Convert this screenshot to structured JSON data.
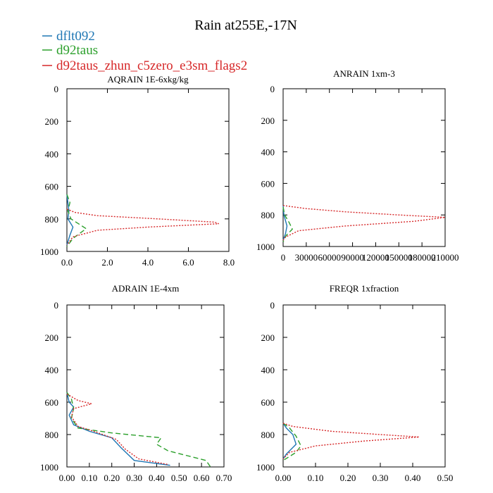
{
  "figure": {
    "title": "Rain at255E,-17N",
    "legend": [
      {
        "name": "dflt092",
        "color": "#1f77b4",
        "dash": "solid"
      },
      {
        "name": "d92taus",
        "color": "#2ca02c",
        "dash": "dashed"
      },
      {
        "name": "d92taus_zhun_c5zero_e3sm_flags2",
        "color": "#d62728",
        "dash": "dotted"
      }
    ]
  },
  "chart_data": [
    {
      "type": "line",
      "title": "AQRAIN  1E-6xkg/kg",
      "xlim": [
        0,
        8
      ],
      "xticks": [
        "0.0",
        "2.0",
        "4.0",
        "6.0",
        "8.0"
      ],
      "ylim": [
        1000,
        0
      ],
      "yticks": [
        "0",
        "200",
        "400",
        "600",
        "800",
        "1000"
      ],
      "grid": false,
      "series": [
        {
          "name": "dflt092",
          "points": [
            [
              0,
              650
            ],
            [
              0.05,
              700
            ],
            [
              0.1,
              750
            ],
            [
              0.05,
              800
            ],
            [
              0.3,
              850
            ],
            [
              0.15,
              900
            ],
            [
              0,
              960
            ]
          ]
        },
        {
          "name": "d92taus",
          "points": [
            [
              0,
              650
            ],
            [
              0.15,
              700
            ],
            [
              0.05,
              750
            ],
            [
              0.2,
              800
            ],
            [
              0.95,
              860
            ],
            [
              0.3,
              920
            ],
            [
              0,
              970
            ]
          ]
        },
        {
          "name": "d92taus_zhun_c5zero_e3sm_flags2",
          "points": [
            [
              0,
              740
            ],
            [
              0.4,
              760
            ],
            [
              1.5,
              780
            ],
            [
              4.5,
              800
            ],
            [
              7.3,
              820
            ],
            [
              7.5,
              830
            ],
            [
              4.0,
              850
            ],
            [
              1.5,
              870
            ],
            [
              0.3,
              910
            ],
            [
              0,
              960
            ]
          ]
        }
      ]
    },
    {
      "type": "line",
      "title": "ANRAIN  1xm-3",
      "xlim": [
        0,
        210000
      ],
      "xticks": [
        "0",
        "30000",
        "60000",
        "90000",
        "120000",
        "150000",
        "180000",
        "210000"
      ],
      "ylim": [
        1000,
        0
      ],
      "yticks": [
        "0",
        "200",
        "400",
        "600",
        "800",
        "1000"
      ],
      "grid": false,
      "series": [
        {
          "name": "dflt092",
          "points": [
            [
              0,
              740
            ],
            [
              1000,
              800
            ],
            [
              5000,
              870
            ],
            [
              3000,
              920
            ],
            [
              0,
              960
            ]
          ]
        },
        {
          "name": "d92taus",
          "points": [
            [
              0,
              750
            ],
            [
              2000,
              800
            ],
            [
              8000,
              850
            ],
            [
              12000,
              890
            ],
            [
              4000,
              930
            ],
            [
              0,
              970
            ]
          ]
        },
        {
          "name": "d92taus_zhun_c5zero_e3sm_flags2",
          "points": [
            [
              0,
              740
            ],
            [
              30000,
              760
            ],
            [
              80000,
              780
            ],
            [
              150000,
              800
            ],
            [
              210000,
              815
            ],
            [
              170000,
              840
            ],
            [
              80000,
              870
            ],
            [
              20000,
              900
            ],
            [
              3000,
              940
            ],
            [
              0,
              960
            ]
          ]
        }
      ]
    },
    {
      "type": "line",
      "title": "ADRAIN  1E-4xm",
      "xlim": [
        0,
        0.7
      ],
      "xticks": [
        "0.00",
        "0.10",
        "0.20",
        "0.30",
        "0.40",
        "0.50",
        "0.60",
        "0.70"
      ],
      "ylim": [
        1000,
        0
      ],
      "yticks": [
        "0",
        "200",
        "400",
        "600",
        "800",
        "1000"
      ],
      "grid": false,
      "series": [
        {
          "name": "dflt092",
          "points": [
            [
              0,
              540
            ],
            [
              0.01,
              600
            ],
            [
              0.03,
              630
            ],
            [
              0.01,
              680
            ],
            [
              0.03,
              740
            ],
            [
              0.1,
              780
            ],
            [
              0.2,
              820
            ],
            [
              0.24,
              880
            ],
            [
              0.3,
              960
            ],
            [
              0.46,
              990
            ]
          ]
        },
        {
          "name": "d92taus",
          "points": [
            [
              0,
              540
            ],
            [
              0.02,
              580
            ],
            [
              0.03,
              640
            ],
            [
              0.02,
              700
            ],
            [
              0.05,
              760
            ],
            [
              0.2,
              790
            ],
            [
              0.42,
              820
            ],
            [
              0.4,
              860
            ],
            [
              0.45,
              900
            ],
            [
              0.62,
              960
            ],
            [
              0.64,
              1000
            ]
          ]
        },
        {
          "name": "d92taus_zhun_c5zero_e3sm_flags2",
          "points": [
            [
              0,
              550
            ],
            [
              0.05,
              590
            ],
            [
              0.11,
              610
            ],
            [
              0.03,
              640
            ],
            [
              0.02,
              690
            ],
            [
              0.05,
              750
            ],
            [
              0.12,
              780
            ],
            [
              0.22,
              830
            ],
            [
              0.26,
              890
            ],
            [
              0.32,
              950
            ],
            [
              0.45,
              985
            ]
          ]
        }
      ]
    },
    {
      "type": "line",
      "title": "FREQR  1xfraction",
      "xlim": [
        0,
        0.5
      ],
      "xticks": [
        "0.00",
        "0.10",
        "0.20",
        "0.30",
        "0.40",
        "0.50"
      ],
      "ylim": [
        1000,
        0
      ],
      "yticks": [
        "0",
        "200",
        "400",
        "600",
        "800",
        "1000"
      ],
      "grid": false,
      "series": [
        {
          "name": "dflt092",
          "points": [
            [
              0,
              730
            ],
            [
              0.01,
              760
            ],
            [
              0.03,
              800
            ],
            [
              0.04,
              860
            ],
            [
              0.01,
              920
            ],
            [
              0,
              950
            ]
          ]
        },
        {
          "name": "d92taus",
          "points": [
            [
              0,
              730
            ],
            [
              0.02,
              760
            ],
            [
              0.04,
              810
            ],
            [
              0.055,
              870
            ],
            [
              0.04,
              910
            ],
            [
              0,
              960
            ]
          ]
        },
        {
          "name": "d92taus_zhun_c5zero_e3sm_flags2",
          "points": [
            [
              0,
              730
            ],
            [
              0.03,
              750
            ],
            [
              0.15,
              780
            ],
            [
              0.3,
              800
            ],
            [
              0.42,
              815
            ],
            [
              0.25,
              840
            ],
            [
              0.1,
              870
            ],
            [
              0.02,
              910
            ],
            [
              0,
              950
            ]
          ]
        }
      ]
    }
  ]
}
